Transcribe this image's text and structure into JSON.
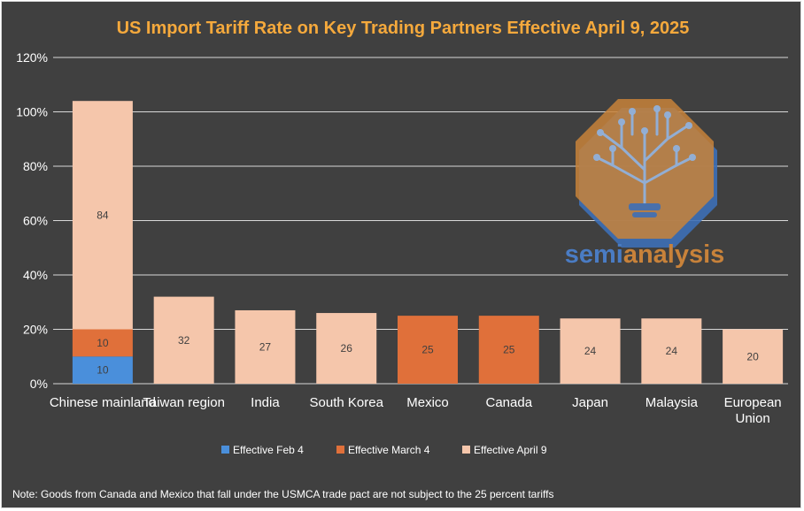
{
  "colors": {
    "background": "#404040",
    "title": "#f5a93c",
    "feb4": "#4a8fdb",
    "mar4": "#e0703a",
    "apr9": "#f5c6ab",
    "grid": "#d9d9d9",
    "watermark_fill": "#c8823a",
    "watermark_shadow": "#3d6fb6",
    "watermark_text_semi": "#4a7cc4",
    "watermark_text_analysis": "#c8823a"
  },
  "chart_data": {
    "type": "bar",
    "stacked": true,
    "title": "US Import Tariff Rate on Key Trading Partners Effective April 9, 2025",
    "xlabel": "",
    "ylabel": "",
    "ylim": [
      0,
      120
    ],
    "yticks": [
      0,
      20,
      40,
      60,
      80,
      100,
      120
    ],
    "ytick_labels": [
      "0%",
      "20%",
      "40%",
      "60%",
      "80%",
      "100%",
      "120%"
    ],
    "grid": true,
    "legend_position": "bottom",
    "categories": [
      [
        "Chinese mainland"
      ],
      [
        "Taiwan region"
      ],
      [
        "India"
      ],
      [
        "South Korea"
      ],
      [
        "Mexico"
      ],
      [
        "Canada"
      ],
      [
        "Japan"
      ],
      [
        "Malaysia"
      ],
      [
        "European",
        "Union"
      ]
    ],
    "series": [
      {
        "name": "Effective Feb 4",
        "color_key": "feb4",
        "values": [
          10,
          0,
          0,
          0,
          0,
          0,
          0,
          0,
          0
        ]
      },
      {
        "name": "Effective March 4",
        "color_key": "mar4",
        "values": [
          10,
          0,
          0,
          0,
          25,
          25,
          0,
          0,
          0
        ]
      },
      {
        "name": "Effective April 9",
        "color_key": "apr9",
        "values": [
          84,
          32,
          27,
          26,
          0,
          0,
          24,
          24,
          20
        ]
      }
    ]
  },
  "note": "Note: Goods from Canada and Mexico that fall under the USMCA trade pact are not subject to the 25 percent tariffs",
  "watermark": {
    "icon": "circuit-tree-lightbulb-icon",
    "text_part1": "semi",
    "text_part2": "analysis"
  }
}
